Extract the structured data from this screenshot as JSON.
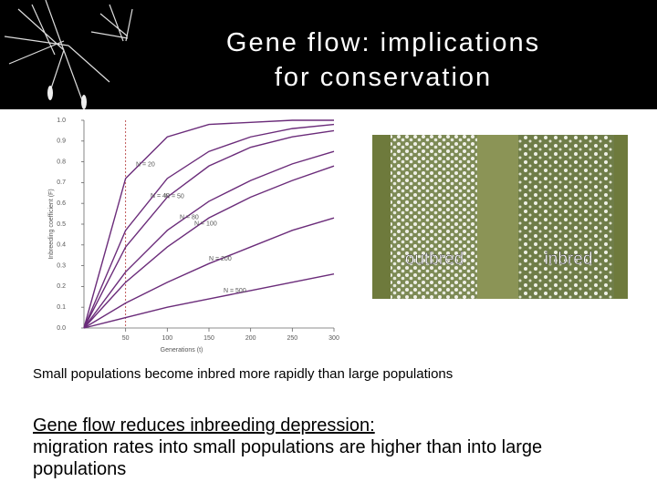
{
  "header": {
    "title_lines": [
      "Gene flow: implications",
      "for conservation"
    ]
  },
  "chart_data": {
    "type": "line",
    "x_label": "Generations (t)",
    "y_label": "Inbreeding coefficient (F)",
    "x": [
      0,
      50,
      100,
      150,
      200,
      250,
      300
    ],
    "series": [
      {
        "name": "N = 20",
        "color": "#6b2c7a",
        "values": [
          0,
          0.72,
          0.92,
          0.98,
          0.99,
          1.0,
          1.0
        ]
      },
      {
        "name": "N = 40",
        "color": "#6b2c7a",
        "values": [
          0,
          0.47,
          0.72,
          0.85,
          0.92,
          0.96,
          0.98
        ]
      },
      {
        "name": "N = 50",
        "color": "#6b2c7a",
        "values": [
          0,
          0.39,
          0.63,
          0.78,
          0.87,
          0.92,
          0.95
        ]
      },
      {
        "name": "N = 80",
        "color": "#6b2c7a",
        "values": [
          0,
          0.27,
          0.47,
          0.61,
          0.71,
          0.79,
          0.85
        ]
      },
      {
        "name": "N = 100",
        "color": "#6b2c7a",
        "values": [
          0,
          0.22,
          0.39,
          0.53,
          0.63,
          0.71,
          0.78
        ]
      },
      {
        "name": "N = 200",
        "color": "#6b2c7a",
        "values": [
          0,
          0.12,
          0.22,
          0.31,
          0.39,
          0.47,
          0.53
        ]
      },
      {
        "name": "N = 500",
        "color": "#6b2c7a",
        "values": [
          0,
          0.05,
          0.1,
          0.14,
          0.18,
          0.22,
          0.26
        ]
      }
    ],
    "vline_x": 50,
    "xlim": [
      0,
      300
    ],
    "xticks": [
      50,
      100,
      150,
      200,
      250,
      300
    ],
    "ylim": [
      0,
      1
    ],
    "yticks": [
      {
        "value": 0,
        "label": "0.0"
      },
      0.1,
      0.2,
      0.3,
      0.4,
      0.5,
      0.6,
      0.7,
      0.8,
      0.9,
      {
        "value": 1,
        "label": "1.0"
      }
    ]
  },
  "photo": {
    "labels": [
      "outbred",
      "inbred"
    ]
  },
  "caption": "Small populations become inbred more rapidly than large populations",
  "body": {
    "heading": "Gene flow reduces inbreeding depression:",
    "text": "migration rates into small populations are higher than into large populations"
  }
}
